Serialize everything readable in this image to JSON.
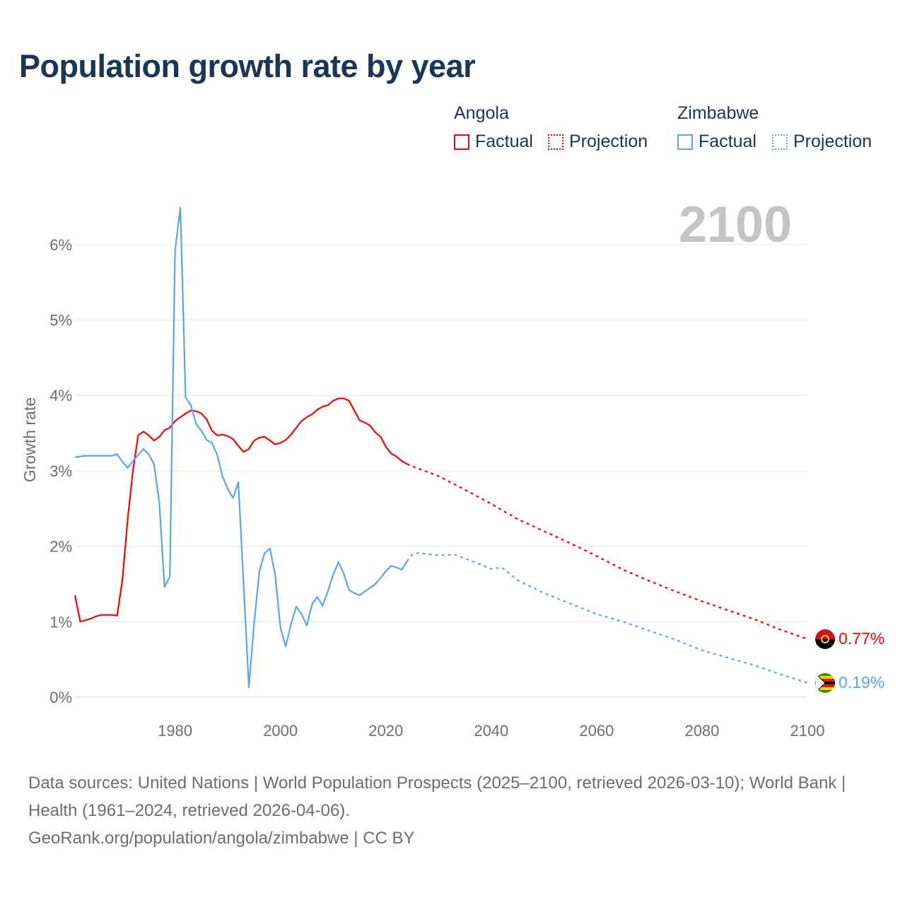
{
  "title": "Population growth rate by year",
  "legend": {
    "groups": [
      {
        "name": "Angola",
        "color": "#ff0000",
        "factual": "Factual",
        "projection": "Projection"
      },
      {
        "name": "Zimbabwe",
        "color": "#5aa5ee",
        "factual": "Factual",
        "projection": "Projection"
      }
    ]
  },
  "year_label": "2100",
  "end_labels": {
    "angola": "0.77%",
    "zimbabwe": "0.19%"
  },
  "footer": {
    "sources": "Data sources: United Nations | World Population Prospects (2025–2100, retrieved 2026-03-10); World Bank | Health (1961–2024, retrieved 2026-04-06).",
    "link": "GeoRank.org/population/angola/zimbabwe | CC BY"
  },
  "chart_data": {
    "type": "line",
    "title": "Population growth rate by year",
    "xlabel": "",
    "ylabel": "Growth rate",
    "xlim": [
      1961,
      2100
    ],
    "ylim": [
      0,
      6.5
    ],
    "xticks": [
      1980,
      2000,
      2020,
      2040,
      2060,
      2080,
      2100
    ],
    "xtick_labels": [
      "1980",
      "2000",
      "2020",
      "2040",
      "2060",
      "2080",
      "2100"
    ],
    "yticks": [
      0,
      1,
      2,
      3,
      4,
      5,
      6
    ],
    "ytick_labels": [
      "0%",
      "1%",
      "2%",
      "3%",
      "4%",
      "5%",
      "6%"
    ],
    "grid": true,
    "legend_position": "top-right",
    "series": [
      {
        "name": "Angola",
        "kind": "Factual",
        "color": "#ff0000",
        "x": [
          1961,
          1962,
          1963,
          1964,
          1965,
          1966,
          1967,
          1968,
          1969,
          1970,
          1971,
          1972,
          1973,
          1974,
          1975,
          1976,
          1977,
          1978,
          1979,
          1980,
          1981,
          1982,
          1983,
          1984,
          1985,
          1986,
          1987,
          1988,
          1989,
          1990,
          1991,
          1992,
          1993,
          1994,
          1995,
          1996,
          1997,
          1998,
          1999,
          2000,
          2001,
          2002,
          2003,
          2004,
          2005,
          2006,
          2007,
          2008,
          2009,
          2010,
          2011,
          2012,
          2013,
          2014,
          2015,
          2016,
          2017,
          2018,
          2019,
          2020,
          2021,
          2022,
          2023,
          2024
        ],
        "y": [
          1.35,
          1.0,
          1.02,
          1.04,
          1.07,
          1.09,
          1.09,
          1.09,
          1.08,
          1.55,
          2.35,
          3.0,
          3.47,
          3.52,
          3.47,
          3.4,
          3.45,
          3.54,
          3.57,
          3.66,
          3.71,
          3.76,
          3.8,
          3.79,
          3.76,
          3.68,
          3.53,
          3.47,
          3.48,
          3.46,
          3.42,
          3.33,
          3.25,
          3.29,
          3.4,
          3.44,
          3.45,
          3.4,
          3.35,
          3.37,
          3.41,
          3.48,
          3.57,
          3.66,
          3.71,
          3.75,
          3.81,
          3.85,
          3.87,
          3.93,
          3.96,
          3.96,
          3.93,
          3.8,
          3.67,
          3.64,
          3.6,
          3.51,
          3.45,
          3.32,
          3.23,
          3.19,
          3.13,
          3.09
        ]
      },
      {
        "name": "Angola",
        "kind": "Projection",
        "color": "#ff0000",
        "x": [
          2024,
          2025,
          2030,
          2035,
          2040,
          2045,
          2050,
          2055,
          2060,
          2065,
          2070,
          2075,
          2080,
          2085,
          2090,
          2095,
          2100
        ],
        "y": [
          3.09,
          3.06,
          2.93,
          2.75,
          2.56,
          2.36,
          2.2,
          2.04,
          1.87,
          1.69,
          1.54,
          1.4,
          1.27,
          1.15,
          1.03,
          0.89,
          0.77
        ]
      },
      {
        "name": "Zimbabwe",
        "kind": "Factual",
        "color": "#5aa5ee",
        "x": [
          1961,
          1962,
          1963,
          1964,
          1965,
          1966,
          1967,
          1968,
          1969,
          1970,
          1971,
          1972,
          1973,
          1974,
          1975,
          1976,
          1977,
          1978,
          1979,
          1980,
          1981,
          1982,
          1983,
          1984,
          1985,
          1986,
          1987,
          1988,
          1989,
          1990,
          1991,
          1992,
          1993,
          1994,
          1995,
          1996,
          1997,
          1998,
          1999,
          2000,
          2001,
          2002,
          2003,
          2004,
          2005,
          2006,
          2007,
          2008,
          2009,
          2010,
          2011,
          2012,
          2013,
          2014,
          2015,
          2016,
          2017,
          2018,
          2019,
          2020,
          2021,
          2022,
          2023,
          2024
        ],
        "y": [
          3.18,
          3.19,
          3.2,
          3.2,
          3.2,
          3.2,
          3.2,
          3.2,
          3.22,
          3.12,
          3.04,
          3.13,
          3.21,
          3.29,
          3.22,
          3.09,
          2.58,
          1.46,
          1.6,
          5.92,
          6.49,
          3.97,
          3.87,
          3.62,
          3.53,
          3.41,
          3.37,
          3.21,
          2.93,
          2.76,
          2.64,
          2.85,
          1.5,
          0.13,
          0.98,
          1.67,
          1.91,
          1.97,
          1.62,
          0.92,
          0.67,
          0.97,
          1.2,
          1.1,
          0.95,
          1.23,
          1.33,
          1.21,
          1.41,
          1.62,
          1.79,
          1.64,
          1.42,
          1.38,
          1.35,
          1.4,
          1.45,
          1.5,
          1.58,
          1.67,
          1.74,
          1.72,
          1.69,
          1.8
        ]
      },
      {
        "name": "Zimbabwe",
        "kind": "Projection",
        "color": "#5aa5ee",
        "x": [
          2024,
          2025,
          2026,
          2030,
          2033,
          2035,
          2040,
          2042,
          2045,
          2050,
          2055,
          2060,
          2065,
          2070,
          2075,
          2080,
          2085,
          2090,
          2095,
          2100
        ],
        "y": [
          1.8,
          1.89,
          1.91,
          1.88,
          1.89,
          1.84,
          1.7,
          1.72,
          1.55,
          1.38,
          1.24,
          1.1,
          1.0,
          0.88,
          0.76,
          0.62,
          0.52,
          0.42,
          0.3,
          0.19
        ]
      }
    ]
  }
}
